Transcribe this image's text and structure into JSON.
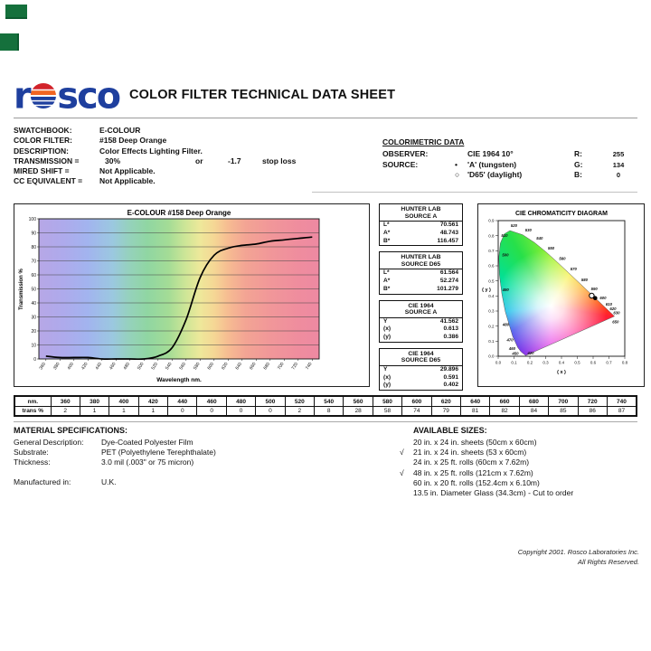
{
  "header": {
    "logo_left": "r",
    "logo_right": "sco",
    "title": "COLOR FILTER TECHNICAL DATA SHEET",
    "logo_color": "#1e3f9e"
  },
  "filter_info": {
    "rows": [
      {
        "label": "SWATCHBOOK:",
        "value": "E-COLOUR"
      },
      {
        "label": "COLOR FILTER:",
        "value": "#158 Deep Orange"
      },
      {
        "label": "DESCRIPTION:",
        "value": "Color Effects Lighting Filter."
      },
      {
        "label": "TRANSMISSION =",
        "value": "30%",
        "extra": [
          "or",
          "-1.7",
          "stop loss"
        ]
      },
      {
        "label": "MIRED SHIFT =",
        "value": "Not Applicable."
      },
      {
        "label": "CC EQUIVALENT =",
        "value": "Not Applicable."
      }
    ]
  },
  "colorimetric": {
    "title": "COLORIMETRIC DATA",
    "rows": [
      {
        "label": "OBSERVER:",
        "bullet": "",
        "value": "CIE 1964 10°",
        "ch_label": "R:",
        "ch_value": "255"
      },
      {
        "label": "SOURCE:",
        "bullet": "•",
        "value": "'A' (tungsten)",
        "ch_label": "G:",
        "ch_value": "134"
      },
      {
        "label": "",
        "bullet": "○",
        "value": "'D65' (daylight)",
        "ch_label": "B:",
        "ch_value": "0"
      }
    ]
  },
  "chart_data": [
    {
      "type": "line",
      "title": "E-COLOUR #158 Deep Orange",
      "xlabel": "Wavelength nm.",
      "ylabel": "Transmission %",
      "xlim": [
        350,
        750
      ],
      "ylim": [
        0,
        100
      ],
      "grid": "horizontal",
      "x": [
        360,
        380,
        400,
        420,
        440,
        460,
        480,
        500,
        520,
        540,
        560,
        580,
        600,
        620,
        640,
        660,
        680,
        700,
        720,
        740
      ],
      "values": [
        2,
        1,
        1,
        1,
        0,
        0,
        0,
        0,
        2,
        8,
        28,
        58,
        74,
        79,
        81,
        82,
        84,
        85,
        86,
        87
      ],
      "yticks": [
        0,
        10,
        20,
        30,
        40,
        50,
        60,
        70,
        80,
        90,
        100
      ],
      "background": "spectrum gradient",
      "spectrum_stops": [
        [
          350,
          "#b7a7e6"
        ],
        [
          385,
          "#aeaaec"
        ],
        [
          420,
          "#a2b4ef"
        ],
        [
          455,
          "#9bc8e0"
        ],
        [
          480,
          "#95d2bb"
        ],
        [
          505,
          "#90d6a2"
        ],
        [
          535,
          "#a4dc96"
        ],
        [
          560,
          "#cfe697"
        ],
        [
          580,
          "#eee89a"
        ],
        [
          600,
          "#f5d795"
        ],
        [
          620,
          "#f6bc92"
        ],
        [
          645,
          "#f3a494"
        ],
        [
          680,
          "#f19799"
        ],
        [
          720,
          "#ef8d9e"
        ],
        [
          750,
          "#ee89a2"
        ]
      ]
    },
    {
      "type": "scatter",
      "title": "CIE CHROMATICITY DIAGRAM",
      "xlabel": "( x )",
      "ylabel": "( y )",
      "xlim": [
        0,
        0.8
      ],
      "ylim": [
        0,
        0.9
      ],
      "xticks": [
        "0.0",
        "0.1",
        "0.2",
        "0.3",
        "0.4",
        "0.5",
        "0.6",
        "0.7",
        "0.8"
      ],
      "yticks": [
        "0.0",
        "0.1",
        "0.2",
        "0.3",
        "0.4",
        "0.5",
        "0.6",
        "0.7",
        "0.8",
        "0.9"
      ],
      "points": [
        {
          "name": "source-A",
          "x": 0.613,
          "y": 0.386,
          "marker": "filled"
        },
        {
          "name": "source-D65",
          "x": 0.591,
          "y": 0.402,
          "marker": "open"
        }
      ],
      "locus_labels": [
        {
          "text": "510",
          "x": 0.04,
          "y": 0.8
        },
        {
          "text": "520",
          "x": 0.1,
          "y": 0.868
        },
        {
          "text": "530",
          "x": 0.19,
          "y": 0.838
        },
        {
          "text": "540",
          "x": 0.262,
          "y": 0.782
        },
        {
          "text": "550",
          "x": 0.335,
          "y": 0.718
        },
        {
          "text": "560",
          "x": 0.406,
          "y": 0.648
        },
        {
          "text": "570",
          "x": 0.476,
          "y": 0.578
        },
        {
          "text": "580",
          "x": 0.545,
          "y": 0.508
        },
        {
          "text": "590",
          "x": 0.607,
          "y": 0.448
        },
        {
          "text": "600",
          "x": 0.662,
          "y": 0.388
        },
        {
          "text": "610",
          "x": 0.7,
          "y": 0.345
        },
        {
          "text": "620",
          "x": 0.725,
          "y": 0.316
        },
        {
          "text": "630",
          "x": 0.748,
          "y": 0.289
        },
        {
          "text": "650",
          "x": 0.742,
          "y": 0.228
        },
        {
          "text": "500",
          "x": 0.045,
          "y": 0.672
        },
        {
          "text": "490",
          "x": 0.047,
          "y": 0.44
        },
        {
          "text": "480",
          "x": 0.048,
          "y": 0.21
        },
        {
          "text": "470",
          "x": 0.075,
          "y": 0.108
        },
        {
          "text": "460",
          "x": 0.088,
          "y": 0.052
        },
        {
          "text": "450",
          "x": 0.108,
          "y": 0.018
        },
        {
          "text": "420",
          "x": 0.205,
          "y": 0.022
        }
      ],
      "locus": [
        [
          0.1741,
          0.005
        ],
        [
          0.1689,
          0.0086
        ],
        [
          0.144,
          0.0297
        ],
        [
          0.1241,
          0.0578
        ],
        [
          0.0913,
          0.1327
        ],
        [
          0.0454,
          0.295
        ],
        [
          0.0235,
          0.4127
        ],
        [
          0.0082,
          0.5384
        ],
        [
          0.0039,
          0.6548
        ],
        [
          0.0139,
          0.7502
        ],
        [
          0.0389,
          0.812
        ],
        [
          0.0743,
          0.8338
        ],
        [
          0.1547,
          0.8059
        ],
        [
          0.2296,
          0.7543
        ],
        [
          0.3016,
          0.6923
        ],
        [
          0.3731,
          0.6245
        ],
        [
          0.4441,
          0.5547
        ],
        [
          0.5125,
          0.4866
        ],
        [
          0.5752,
          0.4242
        ],
        [
          0.627,
          0.3725
        ],
        [
          0.6658,
          0.334
        ],
        [
          0.6915,
          0.3083
        ],
        [
          0.7079,
          0.292
        ],
        [
          0.726,
          0.274
        ],
        [
          0.7347,
          0.2653
        ]
      ]
    }
  ],
  "lab_tables": [
    {
      "title1": "HUNTER LAB",
      "title2": "SOURCE A",
      "rows": [
        [
          "L*",
          "70.561"
        ],
        [
          "A*",
          "48.743"
        ],
        [
          "B*",
          "116.457"
        ]
      ]
    },
    {
      "title1": "HUNTER LAB",
      "title2": "SOURCE D65",
      "rows": [
        [
          "L*",
          "61.564"
        ],
        [
          "A*",
          "52.274"
        ],
        [
          "B*",
          "101.279"
        ]
      ]
    },
    {
      "title1": "CIE 1964",
      "title2": "SOURCE A",
      "rows": [
        [
          "Y",
          "41.562"
        ],
        [
          "(x)",
          "0.613"
        ],
        [
          "(y)",
          "0.386"
        ]
      ]
    },
    {
      "title1": "CIE 1964",
      "title2": "SOURCE D65",
      "rows": [
        [
          "Y",
          "29.896"
        ],
        [
          "(x)",
          "0.591"
        ],
        [
          "(y)",
          "0.402"
        ]
      ]
    }
  ],
  "wavelength_table": {
    "col0_row1": "nm.",
    "col0_row2": "trans %"
  },
  "material_specs": {
    "title": "MATERIAL SPECIFICATIONS:",
    "rows": [
      {
        "label": "General Description:",
        "value": "Dye-Coated Polyester Film"
      },
      {
        "label": "Substrate:",
        "value": "PET (Polyethylene Terephthalate)"
      },
      {
        "label": "Thickness:",
        "value": "3.0 mil (.003\" or 75 micron)"
      }
    ],
    "manufactured_label": "Manufactured in:",
    "manufactured_value": "U.K."
  },
  "available_sizes": {
    "title": "AVAILABLE SIZES:",
    "checkmark": "√",
    "items": [
      {
        "checked": false,
        "text": "20 in. x 24 in. sheets (50cm x 60cm)"
      },
      {
        "checked": true,
        "text": "21 in. x 24 in. sheets (53 x 60cm)"
      },
      {
        "checked": false,
        "text": "24 in. x 25 ft. rolls (60cm x 7.62m)"
      },
      {
        "checked": true,
        "text": "48 in. x 25 ft. rolls (121cm x 7.62m)"
      },
      {
        "checked": false,
        "text": "60 in. x 20 ft. rolls (152.4cm x 6.10m)"
      },
      {
        "checked": false,
        "text": "13.5 in. Diameter Glass (34.3cm) - Cut to order"
      }
    ]
  },
  "copyright": {
    "line1": "Copyright 2001. Rosco Laboratories Inc.",
    "line2": "All Rights Reserved."
  }
}
